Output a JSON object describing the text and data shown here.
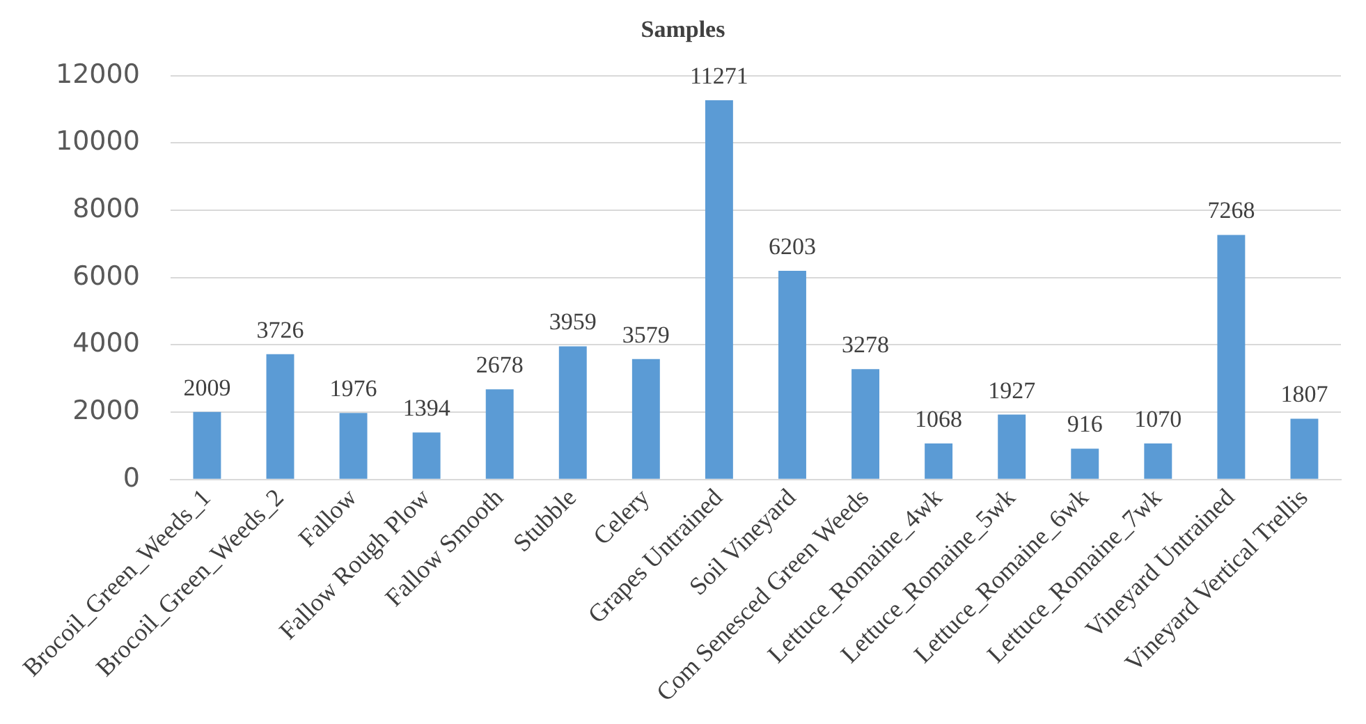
{
  "chart_data": {
    "type": "bar",
    "title": "Samples",
    "categories": [
      "Brocoil_Green_Weeds_1",
      "Brocoil_Green_Weeds_2",
      "Fallow",
      "Fallow Rough Plow",
      "Fallow Smooth",
      "Stubble",
      "Celery",
      "Grapes Untrained",
      "Soil Vineyard",
      "Com Senesced Green Weeds",
      "Lettuce_Romaine_4wk",
      "Lettuce_Romaine_5wk",
      "Lettuce_Romaine_6wk",
      "Lettuce_Romaine_7wk",
      "Vineyard Untrained",
      "Vineyard Vertical Trellis"
    ],
    "values": [
      2009,
      3726,
      1976,
      1394,
      2678,
      3959,
      3579,
      11271,
      6203,
      3278,
      1068,
      1927,
      916,
      1070,
      7268,
      1807
    ],
    "color": "#5b9bd5",
    "ylim": [
      0,
      12000
    ],
    "yticks": [
      0,
      2000,
      4000,
      6000,
      8000,
      10000,
      12000
    ],
    "grid": "y",
    "legend": false,
    "data_labels": true
  }
}
